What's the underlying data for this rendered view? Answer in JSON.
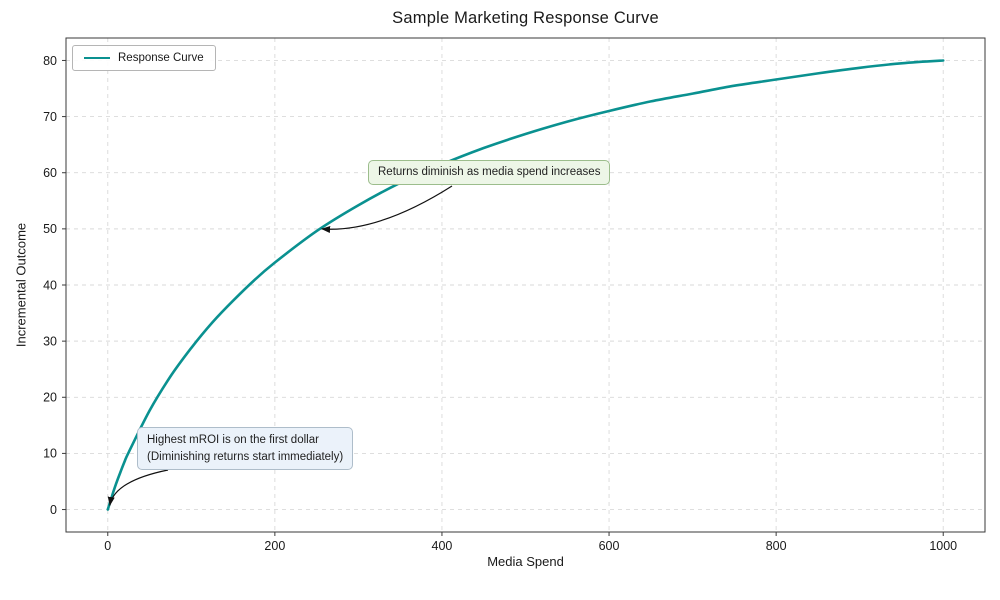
{
  "chart_data": {
    "type": "line",
    "title": "Sample Marketing Response Curve",
    "xlabel": "Media Spend",
    "ylabel": "Incremental Outcome",
    "xlim": [
      -50,
      1050
    ],
    "ylim": [
      -4,
      84
    ],
    "x_ticks": [
      0,
      200,
      400,
      600,
      800,
      1000
    ],
    "y_ticks": [
      0,
      10,
      20,
      30,
      40,
      50,
      60,
      70,
      80
    ],
    "grid": "dashed",
    "grid_color": "#d9d9d9",
    "frame_color": "#3a3a3a",
    "legend": {
      "position": "upper-left",
      "entries": [
        {
          "label": "Response Curve",
          "color": "#0a9190"
        }
      ]
    },
    "series": [
      {
        "name": "Response Curve",
        "color": "#0a9190",
        "line_width": 2.6,
        "x": [
          0,
          5,
          10,
          15,
          20,
          25,
          50,
          75,
          100,
          125,
          150,
          175,
          200,
          250,
          300,
          350,
          400,
          450,
          500,
          550,
          600,
          650,
          700,
          750,
          800,
          850,
          900,
          950,
          1000
        ],
        "y": [
          0,
          2.4,
          4.6,
          6.6,
          8.5,
          10.2,
          17.6,
          23.7,
          28.8,
          33.3,
          37.2,
          40.8,
          44.0,
          49.6,
          54.2,
          58.2,
          61.5,
          64.4,
          66.9,
          69.1,
          71.0,
          72.7,
          74.1,
          75.5,
          76.6,
          77.7,
          78.7,
          79.5,
          80.0
        ]
      }
    ],
    "annotations": [
      {
        "text": "Returns diminish as media spend increases",
        "box_color": "#edf6e7",
        "border_color": "#9cbd8c",
        "target": {
          "x": 250,
          "y": 50
        }
      },
      {
        "line1": "Highest mROI is on the first dollar",
        "line2": "(Diminishing returns start immediately)",
        "box_color": "#ebf2fa",
        "border_color": "#aebdca",
        "target": {
          "x": 0,
          "y": 0
        }
      }
    ]
  }
}
